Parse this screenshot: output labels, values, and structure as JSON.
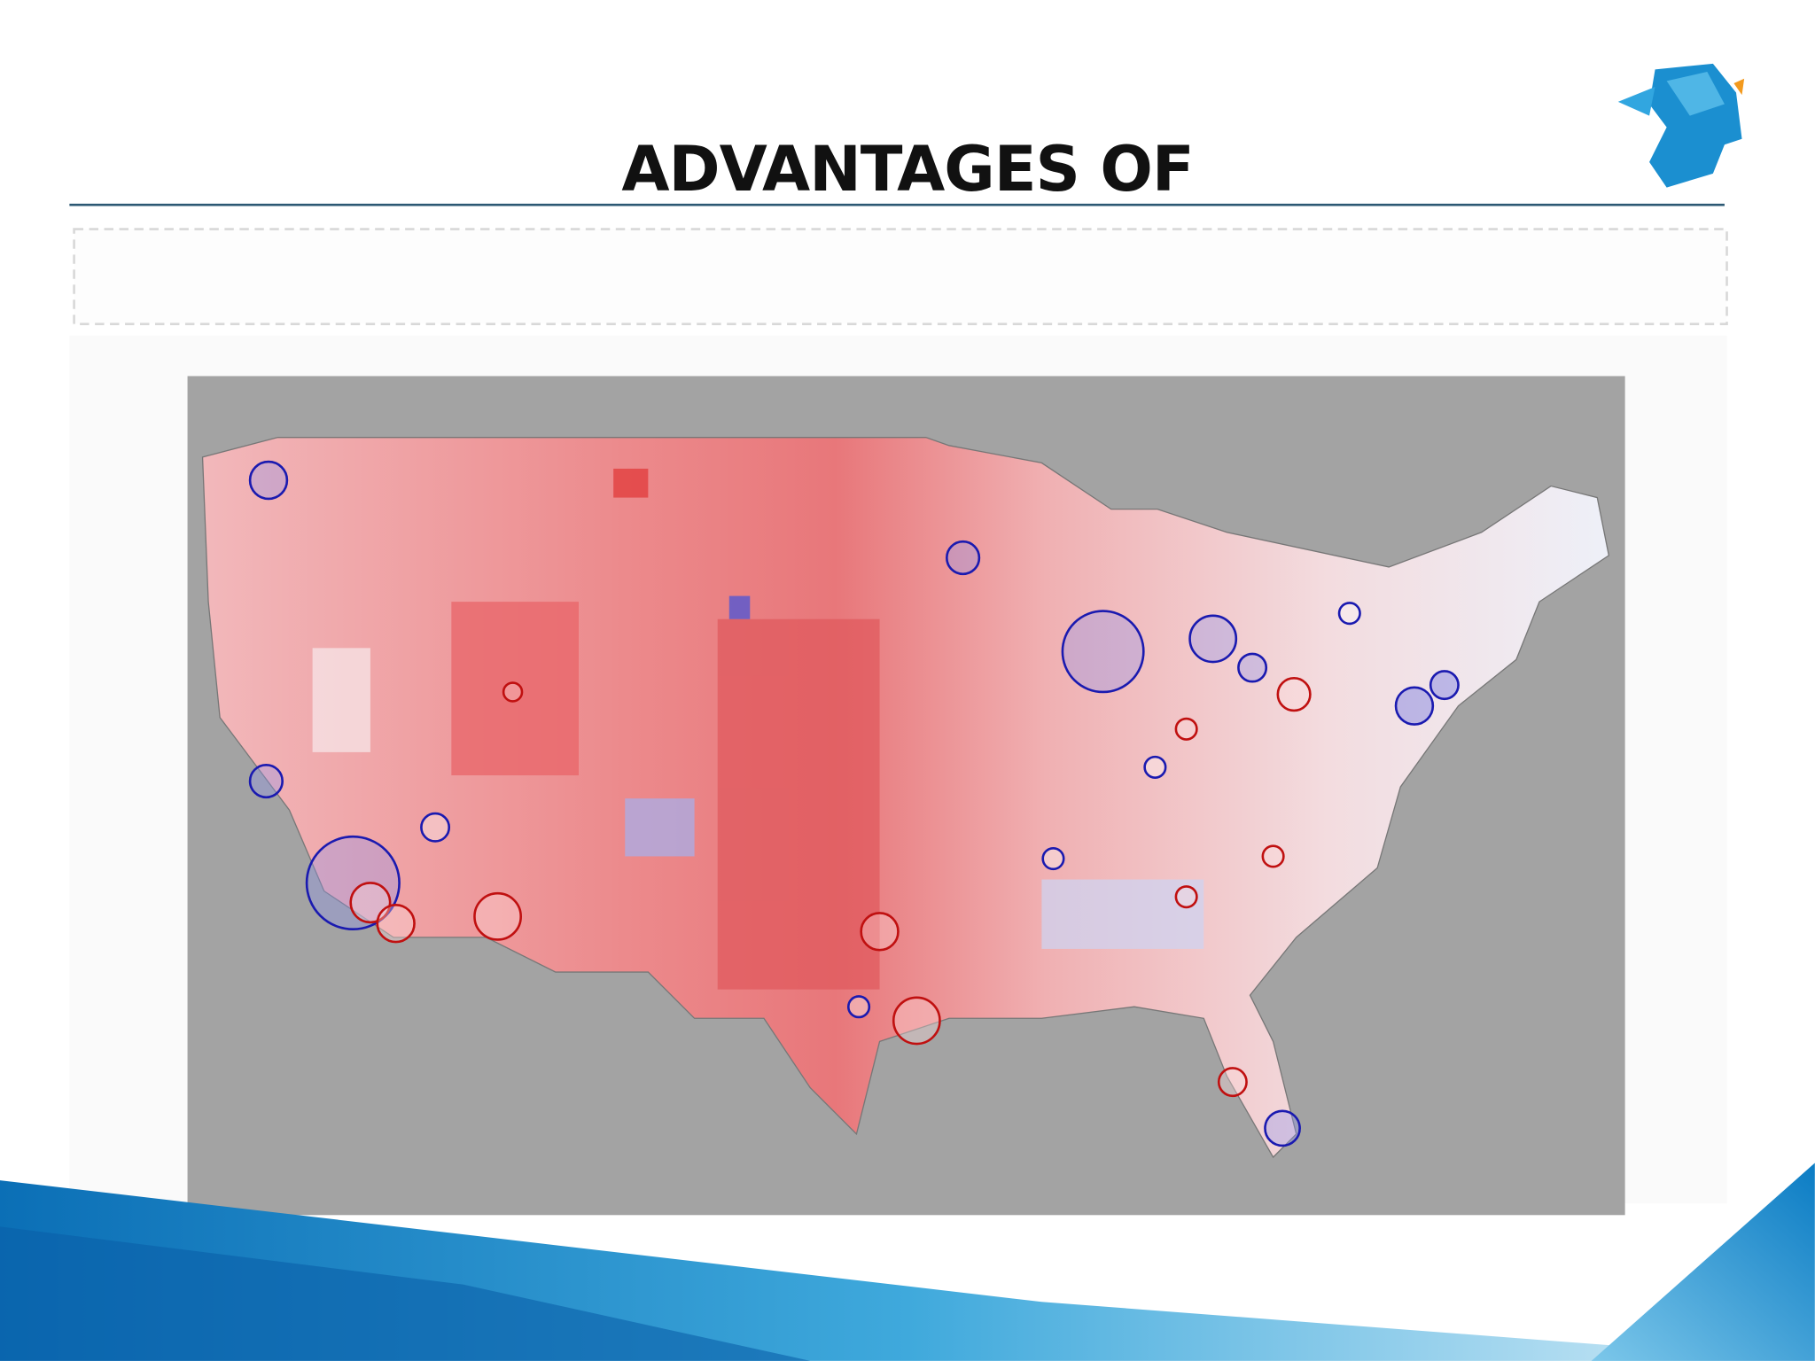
{
  "header": {
    "title": "ADVANTAGES OF"
  }
}
